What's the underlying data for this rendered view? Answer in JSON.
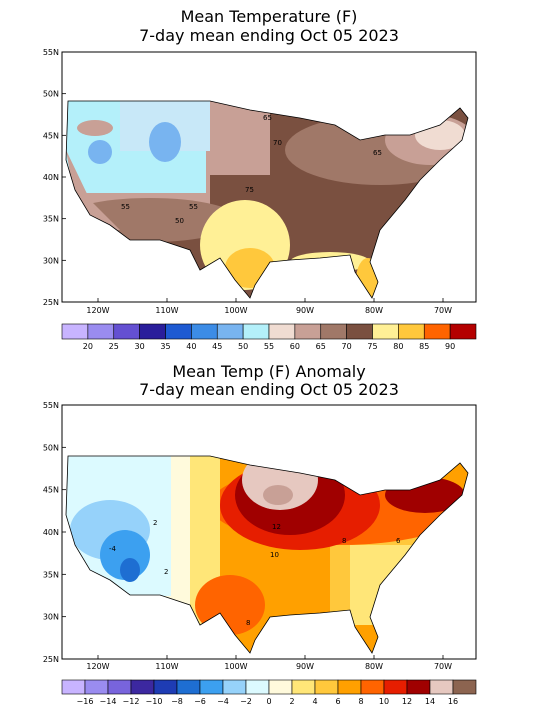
{
  "panels": [
    {
      "title": "Mean Temperature (F)",
      "subtitle": "7-day mean ending Oct 05 2023",
      "lat_labels": [
        "55N",
        "50N",
        "45N",
        "40N",
        "35N",
        "30N",
        "25N"
      ],
      "lon_labels": [
        "120W",
        "110W",
        "100W",
        "90W",
        "80W",
        "70W"
      ],
      "colorbar_labels": [
        "20",
        "25",
        "30",
        "35",
        "40",
        "45",
        "50",
        "55",
        "60",
        "65",
        "70",
        "75",
        "80",
        "85",
        "90"
      ],
      "colorbar_colors": [
        "#c8b4ff",
        "#9a8cf0",
        "#6450d2",
        "#2a1e9b",
        "#1e5ad2",
        "#3c8ce6",
        "#78b4f0",
        "#b4f0fa",
        "#f0dcd2",
        "#c8a096",
        "#a07868",
        "#7a5040",
        "#fff096",
        "#ffc83c",
        "#ff6400",
        "#b40000"
      ],
      "contour_labels": [
        "65",
        "70",
        "75",
        "55",
        "55",
        "50",
        "65"
      ]
    },
    {
      "title": "Mean Temp (F) Anomaly",
      "subtitle": "7-day mean ending Oct 05 2023",
      "lat_labels": [
        "55N",
        "50N",
        "45N",
        "40N",
        "35N",
        "30N",
        "25N"
      ],
      "lon_labels": [
        "120W",
        "110W",
        "100W",
        "90W",
        "80W",
        "70W"
      ],
      "colorbar_labels": [
        "−16",
        "−14",
        "−12",
        "−10",
        "−8",
        "−6",
        "−4",
        "−2",
        "0",
        "2",
        "4",
        "6",
        "8",
        "10",
        "12",
        "14",
        "16"
      ],
      "colorbar_colors": [
        "#c8b4ff",
        "#9a8cf0",
        "#7864dc",
        "#3c28a0",
        "#1e3cb4",
        "#1e6ed2",
        "#3ca0f0",
        "#96d2fa",
        "#dcfaff",
        "#fffadc",
        "#ffe678",
        "#ffc83c",
        "#ffa000",
        "#ff6400",
        "#e61e00",
        "#a00000",
        "#e6c8c0",
        "#8c6450"
      ],
      "contour_labels": [
        "12",
        "10",
        "8",
        "6",
        "2",
        "-4",
        "8",
        "2"
      ]
    }
  ]
}
